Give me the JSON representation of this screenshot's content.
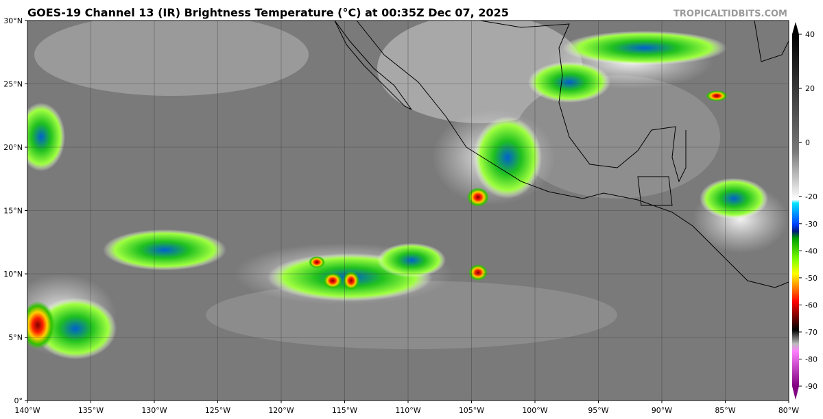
{
  "map": {
    "title": "GOES-19 Channel 13 (IR) Brightness Temperature (°C) at 00:35Z Dec 07, 2025",
    "credit": "TROPICALTIDBITS.COM",
    "lonlim": [
      -140,
      -80
    ],
    "latlim": [
      0,
      30
    ],
    "lonticks": [
      {
        "value": -140,
        "label": "140°W"
      },
      {
        "value": -135,
        "label": "135°W"
      },
      {
        "value": -130,
        "label": "130°W"
      },
      {
        "value": -125,
        "label": "125°W"
      },
      {
        "value": -120,
        "label": "120°W"
      },
      {
        "value": -115,
        "label": "115°W"
      },
      {
        "value": -110,
        "label": "110°W"
      },
      {
        "value": -105,
        "label": "105°W"
      },
      {
        "value": -100,
        "label": "100°W"
      },
      {
        "value": -95,
        "label": "95°W"
      },
      {
        "value": -90,
        "label": "90°W"
      },
      {
        "value": -85,
        "label": "85°W"
      },
      {
        "value": -80,
        "label": "80°W"
      }
    ],
    "latticks": [
      {
        "value": 0,
        "label": "0°"
      },
      {
        "value": 5,
        "label": "5°N"
      },
      {
        "value": 10,
        "label": "10°N"
      },
      {
        "value": 15,
        "label": "15°N"
      },
      {
        "value": 20,
        "label": "20°N"
      },
      {
        "value": 25,
        "label": "25°N"
      },
      {
        "value": 30,
        "label": "30°N"
      }
    ],
    "colorbar": {
      "clim": [
        -90,
        40
      ],
      "ticks": [
        40,
        20,
        0,
        -20,
        -30,
        -40,
        -50,
        -60,
        -70,
        -80,
        -90
      ]
    },
    "grid": true
  }
}
